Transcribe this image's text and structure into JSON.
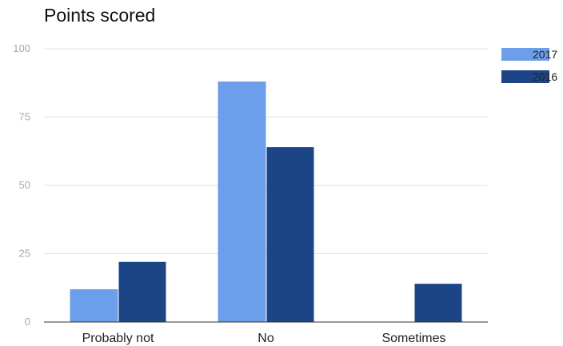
{
  "chart_data": {
    "type": "bar",
    "title": "Points scored",
    "xlabel": "",
    "ylabel": "",
    "categories": [
      "Probably not",
      "No",
      "Sometimes"
    ],
    "series": [
      {
        "name": "2017",
        "values": [
          12,
          88,
          0
        ],
        "color": "#6d9eeb"
      },
      {
        "name": "2016",
        "values": [
          22,
          64,
          14
        ],
        "color": "#1c4587"
      }
    ],
    "ylim": [
      0,
      100
    ],
    "yticks": [
      0,
      25,
      50,
      75,
      100
    ],
    "grid": true,
    "legend_position": "right"
  }
}
